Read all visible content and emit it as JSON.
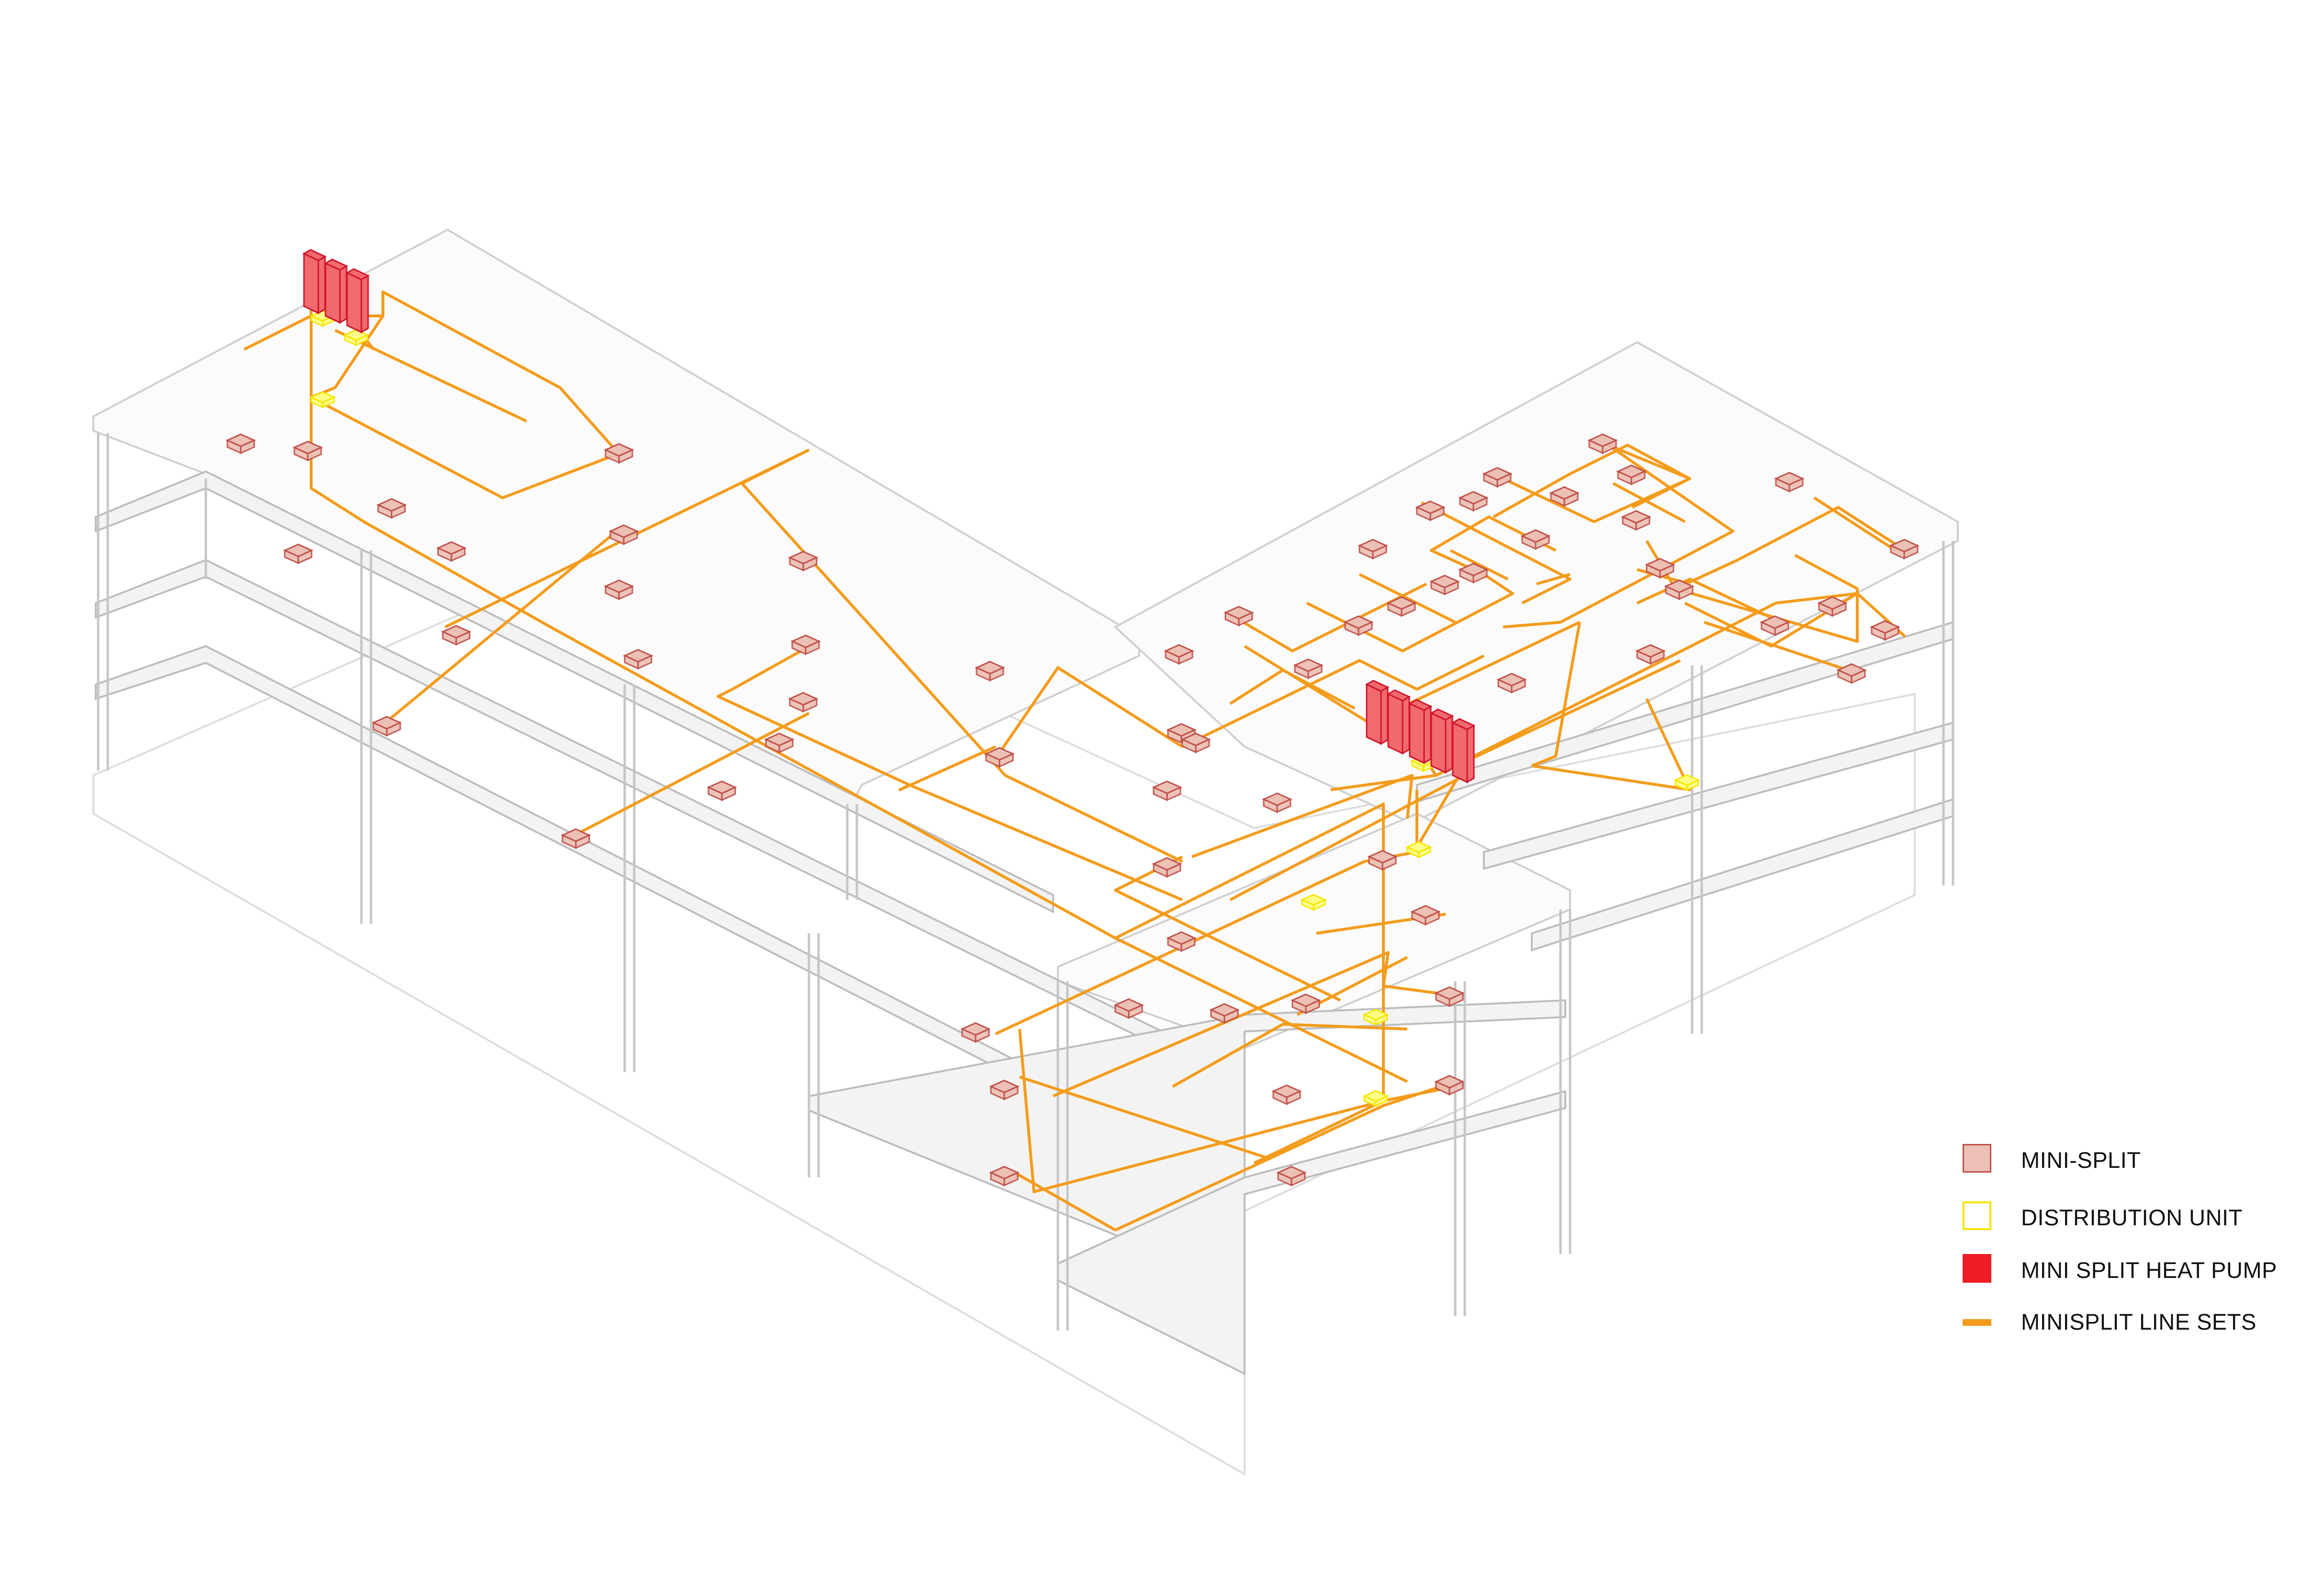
{
  "colors": {
    "mini_split_fill": "#ecc0b4",
    "mini_split_stroke": "#c0504a",
    "distribution_unit_fill": "#ffff88",
    "distribution_unit_stroke": "#f5e600",
    "heat_pump_fill": "#f06a6e",
    "heat_pump_stroke": "#d0142c",
    "line_set": "#f39c1c",
    "structure_line": "#c8c8c8",
    "floor_fill": "#f2f2f2"
  },
  "legend": {
    "items": [
      {
        "key": "mini_split",
        "label": "MINI-SPLIT",
        "swatch_fill": "#ecc0b4",
        "swatch_stroke": "#c0504a",
        "swatch_type": "box"
      },
      {
        "key": "distribution_unit",
        "label": "DISTRIBUTION UNIT",
        "swatch_fill": "#ffffff",
        "swatch_stroke": "#f5e600",
        "swatch_type": "box"
      },
      {
        "key": "heat_pump",
        "label": "MINI SPLIT HEAT PUMP",
        "swatch_fill": "#ee1c25",
        "swatch_stroke": "#ee1c25",
        "swatch_type": "box"
      },
      {
        "key": "line_set",
        "label": "MINISPLIT LINE SETS",
        "swatch_fill": "#f39c1c",
        "swatch_stroke": "#f39c1c",
        "swatch_type": "line"
      }
    ]
  }
}
